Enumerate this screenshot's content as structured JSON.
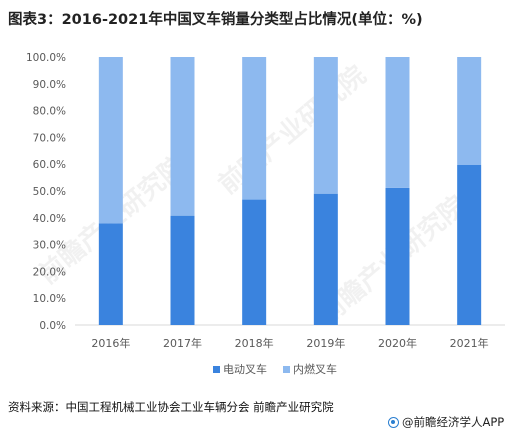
{
  "title": "图表3：2016-2021年中国叉车销量分类型占比情况(单位：%)",
  "source": "资料来源：中国工程机械工业协会工业车辆分会 前瞻产业研究院",
  "brand": "@前瞻经济学人APP",
  "watermark": "前瞻产业研究院",
  "colors": {
    "electric": "#3a83de",
    "combustion": "#8db9ef",
    "axis": "#d9d9d9",
    "text": "#595959"
  },
  "chart_data": {
    "type": "bar",
    "stacked": true,
    "categories": [
      "2016年",
      "2017年",
      "2018年",
      "2019年",
      "2020年",
      "2021年"
    ],
    "series": [
      {
        "name": "电动叉车",
        "values": [
          37.9,
          40.8,
          46.8,
          49.0,
          51.2,
          59.7
        ]
      },
      {
        "name": "内燃叉车",
        "values": [
          62.1,
          59.2,
          53.2,
          51.0,
          48.8,
          40.3
        ]
      }
    ],
    "ylim": [
      0,
      100
    ],
    "yticks": [
      "0.0%",
      "10.0%",
      "20.0%",
      "30.0%",
      "40.0%",
      "50.0%",
      "60.0%",
      "70.0%",
      "80.0%",
      "90.0%",
      "100.0%"
    ],
    "legend_position": "bottom",
    "grid": false
  }
}
